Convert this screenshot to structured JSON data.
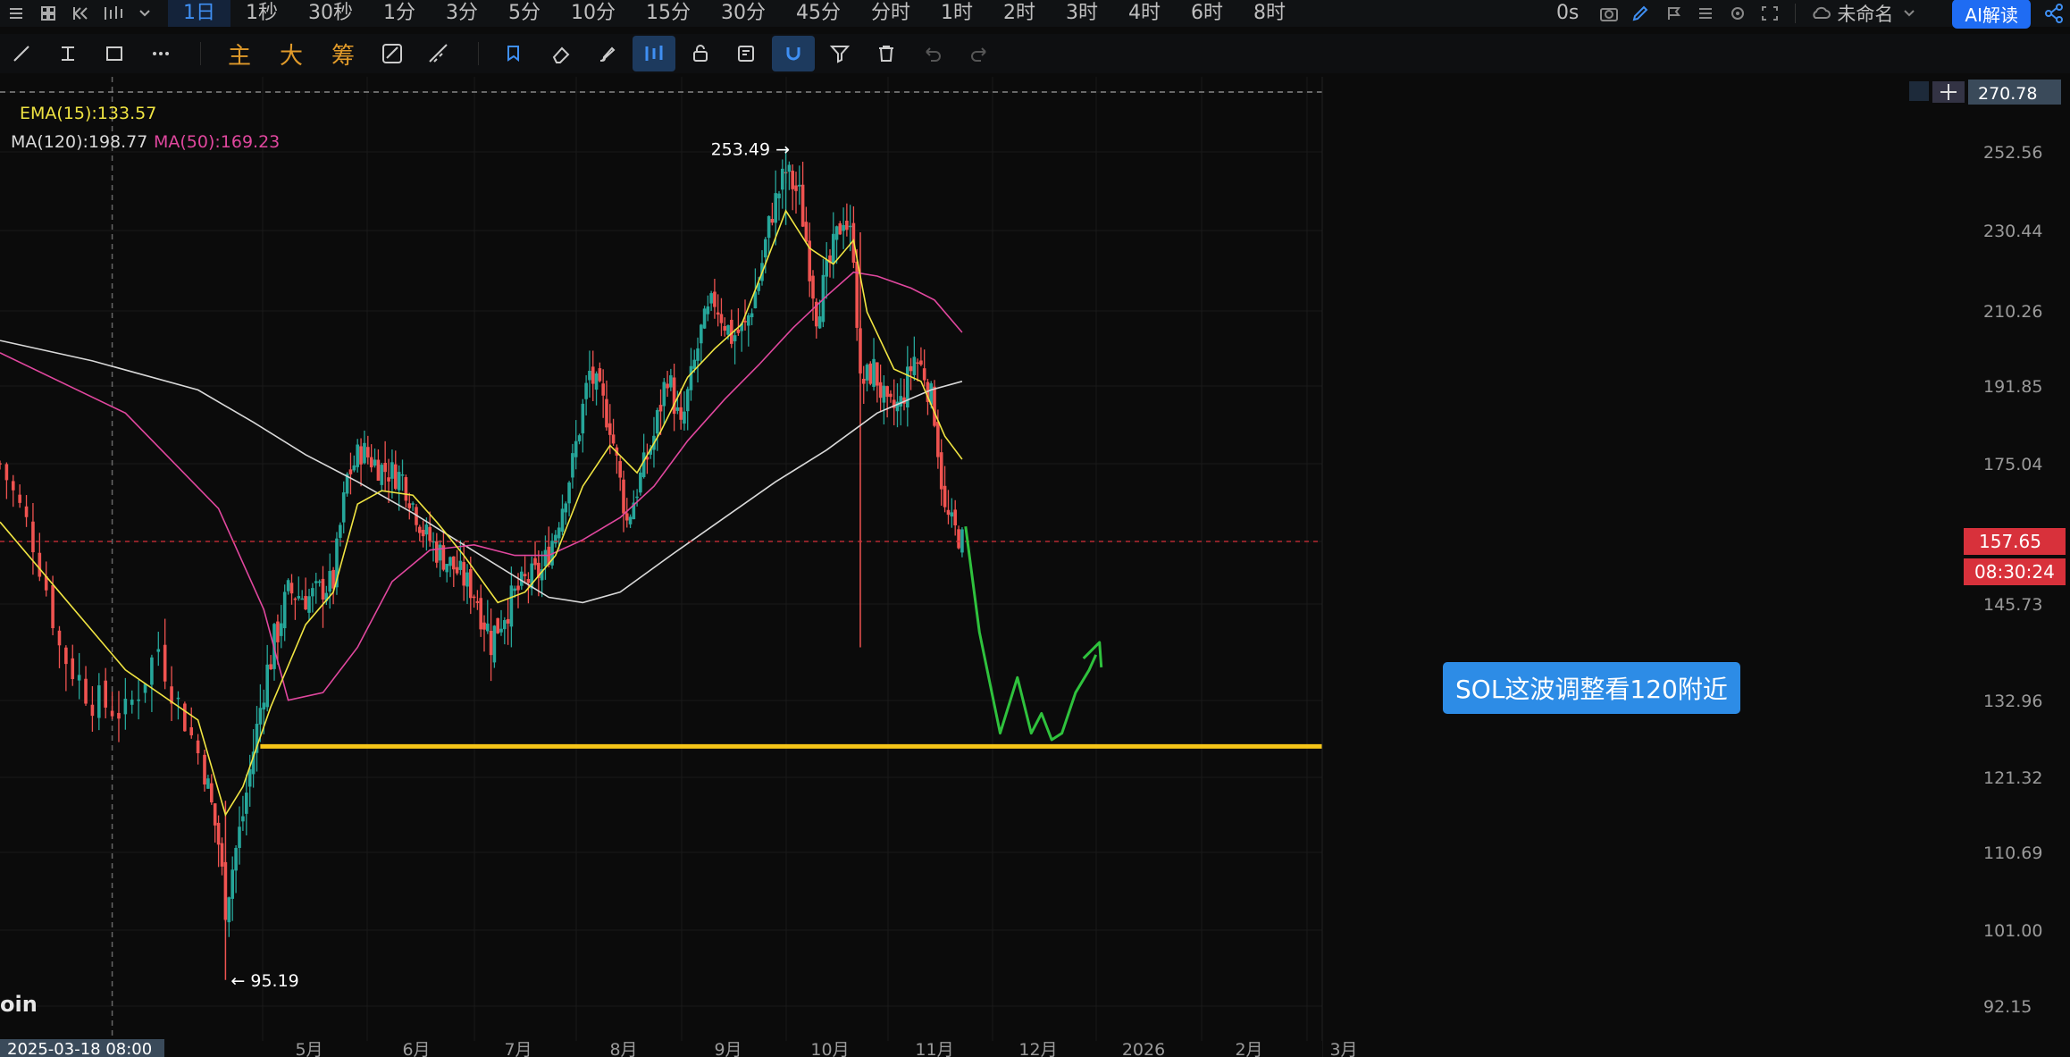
{
  "topbar": {
    "intervals": [
      "1日",
      "1秒",
      "30秒",
      "1分",
      "3分",
      "5分",
      "10分",
      "15分",
      "30分",
      "45分",
      "分时",
      "1时",
      "2时",
      "3时",
      "4时",
      "6时",
      "8时"
    ],
    "active_interval": "1日",
    "countdown": "0s",
    "layout_name": "未命名",
    "ai_button": "AI解读"
  },
  "toolbar": {
    "text_buttons": [
      "主",
      "大",
      "筹"
    ]
  },
  "legend": {
    "ema": "EMA(15):133.57",
    "ma120": "MA(120):198.77",
    "ma50": "MA(50):169.23"
  },
  "annotation": {
    "note": "SOL这波调整看120附近"
  },
  "watermark": "oin",
  "colors": {
    "up": "#26a69a",
    "down": "#ef5350",
    "ema15": "#f0e442",
    "ma50": "#e0479e",
    "ma120": "#d9d9d9",
    "support": "#f5c518",
    "projection": "#2fc23d",
    "price_tag": "#d8313b",
    "note_bg": "#2d8ce6",
    "ai_bg": "#1f6cf3"
  },
  "chart_data": {
    "type": "candlestick",
    "symbol": "SOL",
    "timeframe": "1日",
    "y_range": [
      92.15,
      270.78
    ],
    "y_ticks": [
      270.78,
      252.56,
      230.44,
      210.26,
      191.85,
      175.04,
      157.65,
      145.73,
      132.96,
      121.32,
      110.69,
      101.0,
      92.15
    ],
    "x_ticks": [
      "5月",
      "6月",
      "7月",
      "8月",
      "9月",
      "10月",
      "11月",
      "12月",
      "2026",
      "2月",
      "3月"
    ],
    "crosshair_date": "2025-03-18 08:00",
    "last_price": "157.65",
    "countdown": "08:30:24",
    "high": {
      "label": "253.49",
      "value": 253.49,
      "date": "2025-09-18"
    },
    "low": {
      "label": "95.19",
      "value": 95.19,
      "date": "2025-04-07"
    },
    "support_level": 126,
    "price_path": [
      [
        "03-01",
        175
      ],
      [
        "03-05",
        162
      ],
      [
        "03-10",
        140
      ],
      [
        "03-15",
        133
      ],
      [
        "03-20",
        131
      ],
      [
        "03-25",
        140
      ],
      [
        "03-31",
        125
      ],
      [
        "04-05",
        112
      ],
      [
        "04-07",
        104
      ],
      [
        "04-12",
        116
      ],
      [
        "04-18",
        135
      ],
      [
        "04-25",
        148
      ],
      [
        "05-01",
        147
      ],
      [
        "05-08",
        150
      ],
      [
        "05-12",
        172
      ],
      [
        "05-16",
        178
      ],
      [
        "05-22",
        174
      ],
      [
        "05-28",
        172
      ],
      [
        "06-03",
        160
      ],
      [
        "06-07",
        156
      ],
      [
        "06-13",
        152
      ],
      [
        "06-18",
        148
      ],
      [
        "06-23",
        141
      ],
      [
        "06-27",
        145
      ],
      [
        "07-03",
        150
      ],
      [
        "07-08",
        152
      ],
      [
        "07-12",
        160
      ],
      [
        "07-17",
        175
      ],
      [
        "07-22",
        195
      ],
      [
        "07-28",
        184
      ],
      [
        "08-02",
        162
      ],
      [
        "08-06",
        172
      ],
      [
        "08-10",
        181
      ],
      [
        "08-14",
        195
      ],
      [
        "08-18",
        182
      ],
      [
        "08-24",
        205
      ],
      [
        "08-28",
        213
      ],
      [
        "09-02",
        204
      ],
      [
        "09-06",
        206
      ],
      [
        "09-10",
        218
      ],
      [
        "09-14",
        236
      ],
      [
        "09-18",
        247
      ],
      [
        "09-22",
        240
      ],
      [
        "09-27",
        210
      ],
      [
        "10-01",
        222
      ],
      [
        "10-05",
        235
      ],
      [
        "10-08",
        226
      ],
      [
        "10-10",
        192
      ],
      [
        "10-14",
        196
      ],
      [
        "10-18",
        186
      ],
      [
        "10-22",
        188
      ],
      [
        "10-26",
        199
      ],
      [
        "10-29",
        195
      ],
      [
        "11-01",
        186
      ],
      [
        "11-04",
        164
      ],
      [
        "11-07",
        160
      ],
      [
        "11-09",
        158
      ]
    ],
    "ema15_path": [
      [
        "03-01",
        162
      ],
      [
        "03-10",
        148
      ],
      [
        "03-20",
        137
      ],
      [
        "03-31",
        130
      ],
      [
        "04-07",
        116
      ],
      [
        "04-12",
        120
      ],
      [
        "04-20",
        132
      ],
      [
        "04-30",
        143
      ],
      [
        "05-08",
        148
      ],
      [
        "05-15",
        166
      ],
      [
        "05-22",
        169
      ],
      [
        "05-31",
        168
      ],
      [
        "06-07",
        162
      ],
      [
        "06-15",
        155
      ],
      [
        "06-25",
        146
      ],
      [
        "07-03",
        148
      ],
      [
        "07-12",
        155
      ],
      [
        "07-20",
        170
      ],
      [
        "07-28",
        179
      ],
      [
        "08-05",
        173
      ],
      [
        "08-12",
        182
      ],
      [
        "08-20",
        194
      ],
      [
        "08-28",
        201
      ],
      [
        "09-05",
        207
      ],
      [
        "09-12",
        222
      ],
      [
        "09-18",
        236
      ],
      [
        "09-25",
        226
      ],
      [
        "10-02",
        222
      ],
      [
        "10-08",
        228
      ],
      [
        "10-12",
        210
      ],
      [
        "10-20",
        196
      ],
      [
        "10-28",
        193
      ],
      [
        "11-04",
        181
      ],
      [
        "11-09",
        176
      ]
    ],
    "ma50_path": [
      [
        "03-01",
        200
      ],
      [
        "03-20",
        186
      ],
      [
        "04-05",
        165
      ],
      [
        "04-18",
        145
      ],
      [
        "04-25",
        133
      ],
      [
        "05-05",
        134
      ],
      [
        "05-15",
        140
      ],
      [
        "05-25",
        150
      ],
      [
        "06-05",
        156
      ],
      [
        "06-18",
        157
      ],
      [
        "06-30",
        155
      ],
      [
        "07-10",
        155
      ],
      [
        "07-20",
        158
      ],
      [
        "07-31",
        163
      ],
      [
        "08-10",
        170
      ],
      [
        "08-20",
        180
      ],
      [
        "08-31",
        189
      ],
      [
        "09-10",
        197
      ],
      [
        "09-20",
        206
      ],
      [
        "09-30",
        214
      ],
      [
        "10-08",
        220
      ],
      [
        "10-15",
        219
      ],
      [
        "10-25",
        216
      ],
      [
        "11-01",
        213
      ],
      [
        "11-09",
        205
      ]
    ],
    "ma120_path": [
      [
        "03-01",
        203
      ],
      [
        "03-15",
        198
      ],
      [
        "03-31",
        191
      ],
      [
        "04-15",
        184
      ],
      [
        "04-30",
        177
      ],
      [
        "05-15",
        171
      ],
      [
        "05-31",
        164
      ],
      [
        "06-15",
        157
      ],
      [
        "06-30",
        151
      ],
      [
        "07-10",
        147
      ],
      [
        "07-20",
        146
      ],
      [
        "07-31",
        148
      ],
      [
        "08-15",
        155
      ],
      [
        "08-31",
        163
      ],
      [
        "09-15",
        171
      ],
      [
        "09-30",
        178
      ],
      [
        "10-15",
        186
      ],
      [
        "10-31",
        191
      ],
      [
        "11-09",
        193
      ]
    ],
    "projection_path": [
      [
        "11-10",
        161
      ],
      [
        "11-14",
        142
      ],
      [
        "11-20",
        128
      ],
      [
        "11-25",
        136
      ],
      [
        "11-29",
        128
      ],
      [
        "12-02",
        131
      ],
      [
        "12-05",
        127
      ],
      [
        "12-08",
        128
      ],
      [
        "12-12",
        134
      ],
      [
        "12-16",
        137
      ],
      [
        "12-18",
        139
      ]
    ]
  }
}
